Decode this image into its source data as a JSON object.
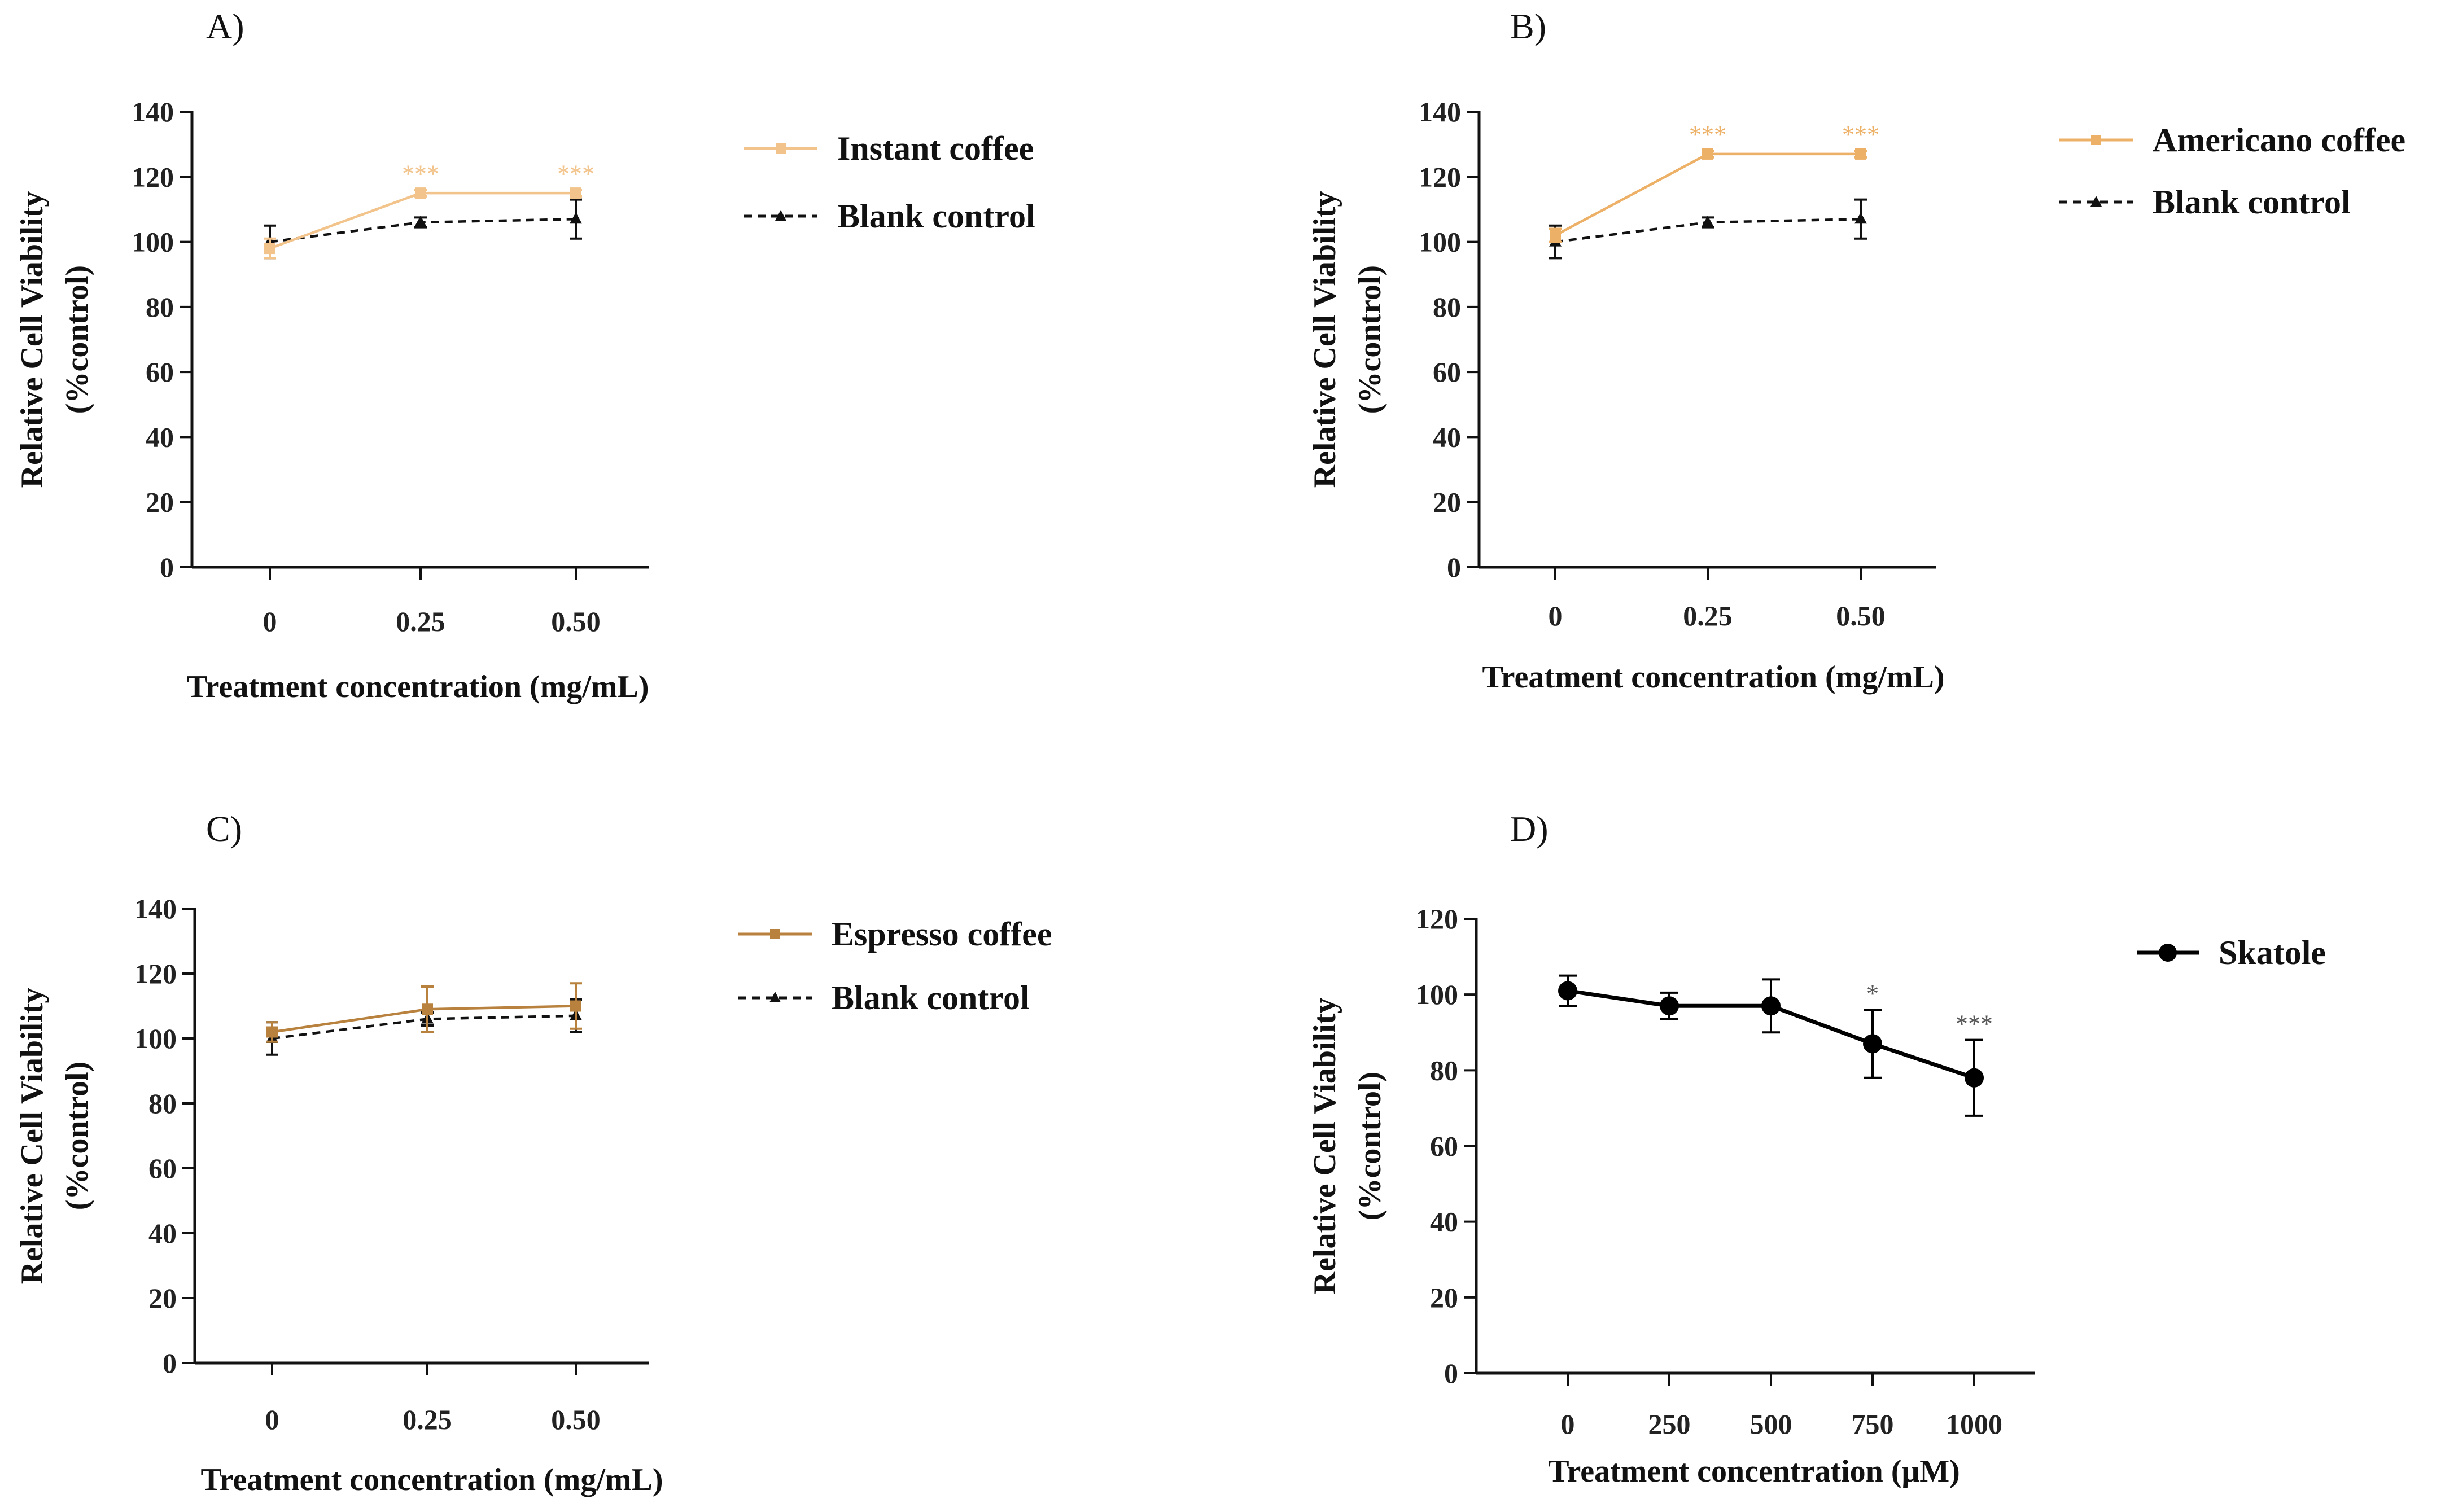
{
  "chart_data": [
    {
      "id": "A",
      "panel_label": "A)",
      "type": "line",
      "x_kind": "categorical",
      "categories": [
        "0",
        "0.25",
        "0.50"
      ],
      "ylim": [
        0,
        140
      ],
      "yticks": [
        0,
        20,
        40,
        60,
        80,
        100,
        120,
        140
      ],
      "xlabel": "Treatment concentration (mg/mL)",
      "ylabel_line1": "Relative Cell Viability",
      "ylabel_line2": "(%control)",
      "series": [
        {
          "name": "Instant coffee",
          "color": "#F2C38A",
          "dash": false,
          "marker": "square",
          "values": [
            98,
            115,
            115
          ],
          "errors": [
            3,
            1,
            1
          ],
          "significance": [
            "",
            "***",
            "***"
          ]
        },
        {
          "name": "Blank control",
          "color": "#111111",
          "dash": true,
          "marker": "triangle",
          "values": [
            100,
            106,
            107
          ],
          "errors": [
            5,
            1.5,
            6
          ],
          "significance": [
            "",
            "",
            ""
          ]
        }
      ]
    },
    {
      "id": "B",
      "panel_label": "B)",
      "type": "line",
      "x_kind": "categorical",
      "categories": [
        "0",
        "0.25",
        "0.50"
      ],
      "ylim": [
        0,
        140
      ],
      "yticks": [
        0,
        20,
        40,
        60,
        80,
        100,
        120,
        140
      ],
      "xlabel": "Treatment concentration (mg/mL)",
      "ylabel_line1": "Relative Cell Viability",
      "ylabel_line2": "(%control)",
      "series": [
        {
          "name": "Americano coffee",
          "color": "#EDB067",
          "dash": false,
          "marker": "square",
          "values": [
            102,
            127,
            127
          ],
          "errors": [
            2,
            1,
            1
          ],
          "significance": [
            "",
            "***",
            "***"
          ]
        },
        {
          "name": "Blank control",
          "color": "#111111",
          "dash": true,
          "marker": "triangle",
          "values": [
            100,
            106,
            107
          ],
          "errors": [
            5,
            1.5,
            6
          ],
          "significance": [
            "",
            "",
            ""
          ]
        }
      ]
    },
    {
      "id": "C",
      "panel_label": "C)",
      "type": "line",
      "x_kind": "categorical",
      "categories": [
        "0",
        "0.25",
        "0.50"
      ],
      "ylim": [
        0,
        140
      ],
      "yticks": [
        0,
        20,
        40,
        60,
        80,
        100,
        120,
        140
      ],
      "xlabel": "Treatment concentration (mg/mL)",
      "ylabel_line1": "Relative Cell Viability",
      "ylabel_line2": "(%control)",
      "series": [
        {
          "name": "Espresso coffee",
          "color": "#B8823E",
          "dash": false,
          "marker": "square",
          "values": [
            102,
            109,
            110
          ],
          "errors": [
            3,
            7,
            7
          ],
          "significance": [
            "",
            "",
            ""
          ]
        },
        {
          "name": "Blank control",
          "color": "#111111",
          "dash": true,
          "marker": "triangle",
          "values": [
            100,
            106,
            107
          ],
          "errors": [
            5,
            2,
            5
          ],
          "significance": [
            "",
            "",
            ""
          ]
        }
      ]
    },
    {
      "id": "D",
      "panel_label": "D)",
      "type": "line",
      "x_kind": "numeric",
      "x": [
        0,
        250,
        500,
        750,
        1000
      ],
      "xticks": [
        "0",
        "250",
        "500",
        "750",
        "1000"
      ],
      "xlim": [
        -225,
        1150
      ],
      "ylim": [
        0,
        120
      ],
      "yticks": [
        0,
        20,
        40,
        60,
        80,
        100,
        120
      ],
      "xlabel": "Treatment concentration (μM)",
      "ylabel_line1": "Relative Cell Viability",
      "ylabel_line2": "(%control)",
      "series": [
        {
          "name": "Skatole",
          "color": "#000000",
          "dash": false,
          "marker": "circle",
          "values": [
            101,
            97,
            97,
            87,
            78
          ],
          "errors": [
            4,
            3.5,
            7,
            9,
            10
          ],
          "significance": [
            "",
            "",
            "",
            "*",
            "***"
          ]
        }
      ]
    }
  ]
}
